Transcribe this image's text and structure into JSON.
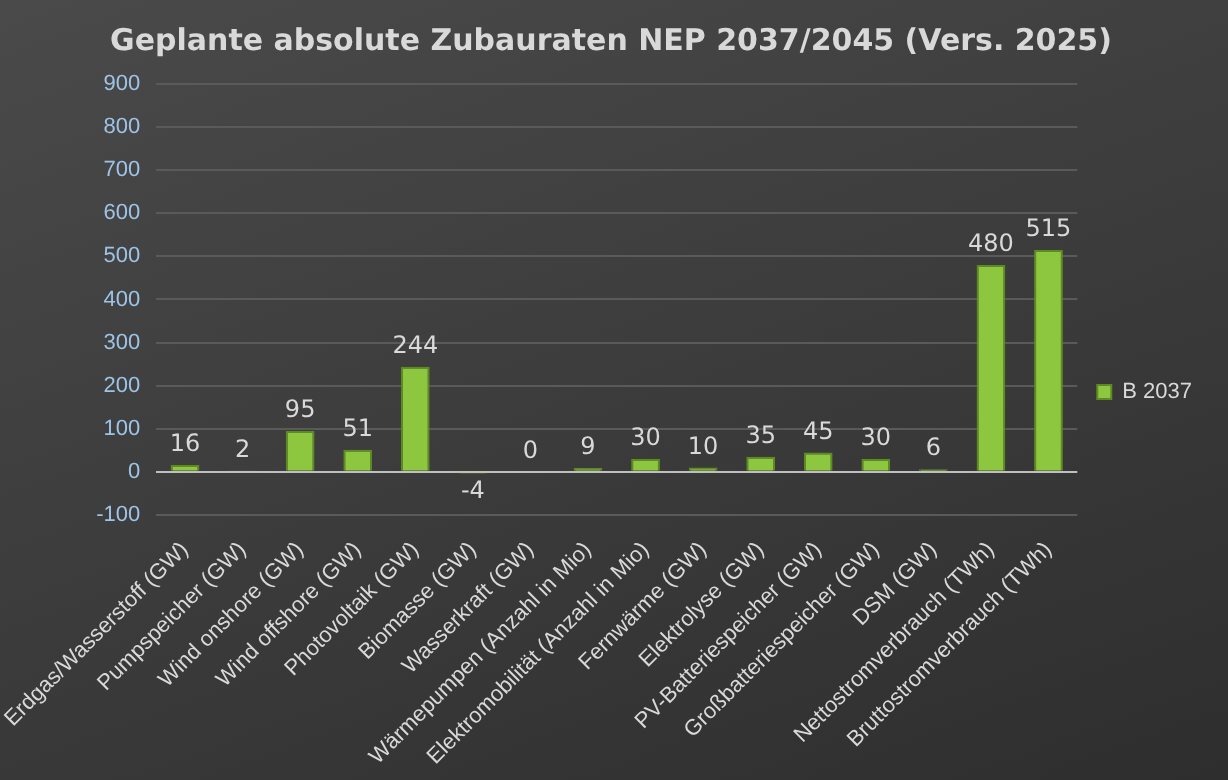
{
  "chart_data": {
    "type": "bar",
    "title": "Geplante absolute Zubauraten NEP 2037/2045 (Vers. 2025)",
    "categories": [
      "Erdgas/Wasserstoff (GW)",
      "Pumpspeicher (GW)",
      "Wind onshore (GW)",
      "Wind offshore (GW)",
      "Photovoltaik (GW)",
      "Biomasse (GW)",
      "Wasserkraft (GW)",
      "Wärmepumpen (Anzahl in Mio)",
      "Elektromobilität (Anzahl in Mio)",
      "Fernwärme (GW)",
      "Elektrolyse (GW)",
      "PV-Batteriespeicher (GW)",
      "Großbatteriespeicher (GW)",
      "DSM (GW)",
      "Nettostromverbrauch (TWh)",
      "Bruttostromverbrauch (TWh)"
    ],
    "series": [
      {
        "name": "B 2037",
        "color": "#8dc63f",
        "values": [
          16,
          2,
          95,
          51,
          244,
          -4,
          0,
          9,
          30,
          10,
          35,
          45,
          30,
          6,
          480,
          515
        ]
      }
    ],
    "ylim": [
      -100,
      900
    ],
    "yticks": [
      -100,
      0,
      100,
      200,
      300,
      400,
      500,
      600,
      700,
      800,
      900
    ],
    "grid": "y",
    "legend": "right",
    "data_labels": true
  }
}
